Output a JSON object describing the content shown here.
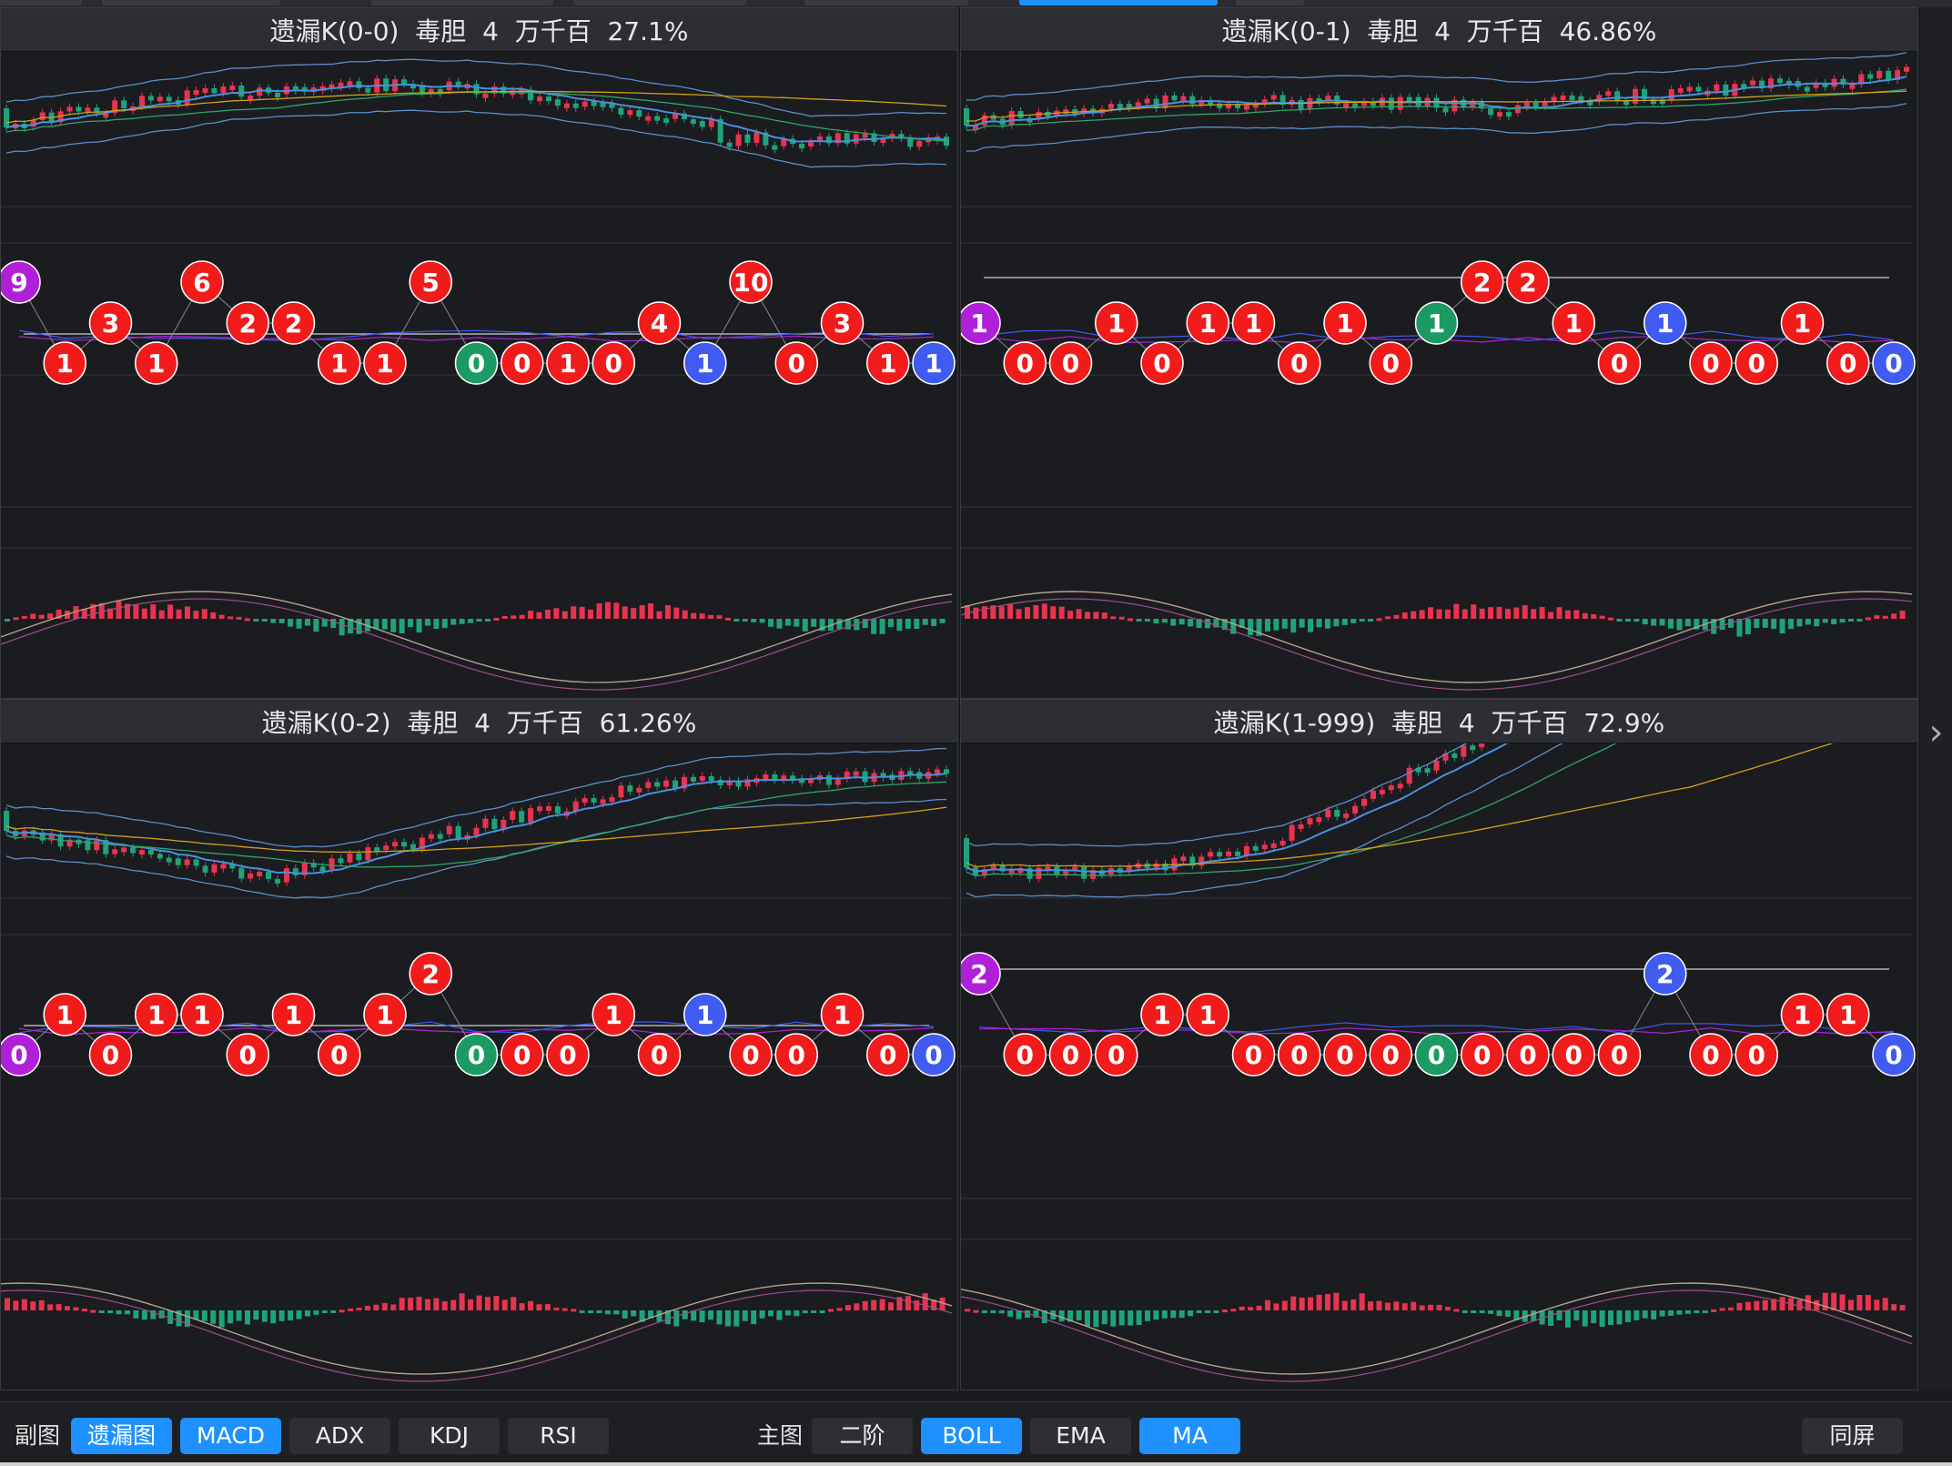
{
  "panels": [
    {
      "title": "遗漏K(0-0)  毒胆  4  万千百  27.1%",
      "nodes": [
        [
          "9",
          "purple"
        ],
        [
          "1",
          "red"
        ],
        [
          "3",
          "red"
        ],
        [
          "1",
          "red"
        ],
        [
          "6",
          "red"
        ],
        [
          "2",
          "red"
        ],
        [
          "2",
          "red"
        ],
        [
          "1",
          "red"
        ],
        [
          "1",
          "red"
        ],
        [
          "5",
          "red"
        ],
        [
          "0",
          "green"
        ],
        [
          "0",
          "red"
        ],
        [
          "1",
          "red"
        ],
        [
          "0",
          "red"
        ],
        [
          "4",
          "red"
        ],
        [
          "1",
          "blue"
        ],
        [
          "10",
          "red"
        ],
        [
          "0",
          "red"
        ],
        [
          "3",
          "red"
        ],
        [
          "1",
          "red"
        ],
        [
          "1",
          "blue"
        ]
      ]
    },
    {
      "title": "遗漏K(0-1)  毒胆  4  万千百  46.86%",
      "nodes": [
        [
          "1",
          "purple"
        ],
        [
          "0",
          "red"
        ],
        [
          "0",
          "red"
        ],
        [
          "1",
          "red"
        ],
        [
          "0",
          "red"
        ],
        [
          "1",
          "red"
        ],
        [
          "1",
          "red"
        ],
        [
          "0",
          "red"
        ],
        [
          "1",
          "red"
        ],
        [
          "0",
          "red"
        ],
        [
          "1",
          "green"
        ],
        [
          "2",
          "red"
        ],
        [
          "2",
          "red"
        ],
        [
          "1",
          "red"
        ],
        [
          "0",
          "red"
        ],
        [
          "1",
          "blue"
        ],
        [
          "0",
          "red"
        ],
        [
          "0",
          "red"
        ],
        [
          "1",
          "red"
        ],
        [
          "0",
          "red"
        ],
        [
          "0",
          "blue"
        ]
      ]
    },
    {
      "title": "遗漏K(0-2)  毒胆  4  万千百  61.26%",
      "nodes": [
        [
          "0",
          "purple"
        ],
        [
          "1",
          "red"
        ],
        [
          "0",
          "red"
        ],
        [
          "1",
          "red"
        ],
        [
          "1",
          "red"
        ],
        [
          "0",
          "red"
        ],
        [
          "1",
          "red"
        ],
        [
          "0",
          "red"
        ],
        [
          "1",
          "red"
        ],
        [
          "2",
          "red"
        ],
        [
          "0",
          "green"
        ],
        [
          "0",
          "red"
        ],
        [
          "0",
          "red"
        ],
        [
          "1",
          "red"
        ],
        [
          "0",
          "red"
        ],
        [
          "1",
          "blue"
        ],
        [
          "0",
          "red"
        ],
        [
          "0",
          "red"
        ],
        [
          "1",
          "red"
        ],
        [
          "0",
          "red"
        ],
        [
          "0",
          "blue"
        ]
      ]
    },
    {
      "title": "遗漏K(1-999)  毒胆  4  万千百  72.9%",
      "nodes": [
        [
          "2",
          "purple"
        ],
        [
          "0",
          "red"
        ],
        [
          "0",
          "red"
        ],
        [
          "0",
          "red"
        ],
        [
          "1",
          "red"
        ],
        [
          "1",
          "red"
        ],
        [
          "0",
          "red"
        ],
        [
          "0",
          "red"
        ],
        [
          "0",
          "red"
        ],
        [
          "0",
          "red"
        ],
        [
          "0",
          "green"
        ],
        [
          "0",
          "red"
        ],
        [
          "0",
          "red"
        ],
        [
          "0",
          "red"
        ],
        [
          "0",
          "red"
        ],
        [
          "2",
          "blue"
        ],
        [
          "0",
          "red"
        ],
        [
          "0",
          "red"
        ],
        [
          "1",
          "red"
        ],
        [
          "1",
          "red"
        ],
        [
          "0",
          "blue"
        ]
      ]
    }
  ],
  "bottom_bar": {
    "sub_label": "副图",
    "sub_buttons": [
      {
        "label": "遗漏图",
        "active": true
      },
      {
        "label": "MACD",
        "active": true
      },
      {
        "label": "ADX",
        "active": false
      },
      {
        "label": "KDJ",
        "active": false
      },
      {
        "label": "RSI",
        "active": false
      }
    ],
    "main_label": "主图",
    "main_buttons": [
      {
        "label": "二阶",
        "active": false
      },
      {
        "label": "BOLL",
        "active": true
      },
      {
        "label": "EMA",
        "active": false
      },
      {
        "label": "MA",
        "active": true
      }
    ],
    "same_screen_label": "同屏"
  },
  "colors": {
    "candle_up": "#e8344e",
    "candle_down": "#1fa37a",
    "node_red": "#f21b1b",
    "node_green": "#1c9a63",
    "node_blue": "#3f5bf0",
    "node_purple": "#b020d8",
    "accent": "#1e90ff"
  },
  "icons": {
    "next_arrow": "chevron-right-icon"
  }
}
